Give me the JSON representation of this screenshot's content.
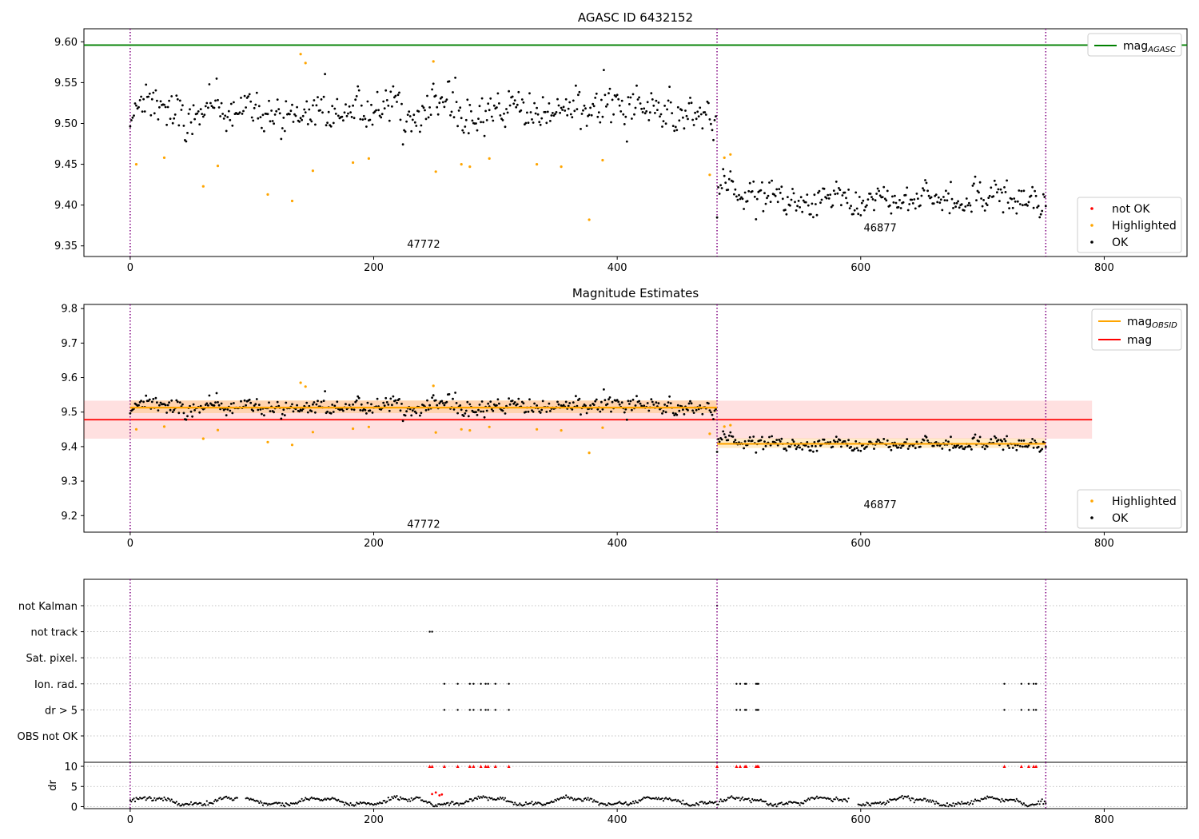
{
  "chart_data": [
    {
      "id": "p1",
      "type": "scatter",
      "title": "AGASC ID 6432152",
      "xlim": [
        -38,
        868
      ],
      "ylim": [
        9.337,
        9.616
      ],
      "xticks": [
        0,
        200,
        400,
        600,
        800
      ],
      "yticks": [
        9.35,
        9.4,
        9.45,
        9.5,
        9.55,
        9.6
      ],
      "vlines": [
        0,
        482,
        752
      ],
      "obsid_labels": [
        {
          "text": "47772",
          "x": 241,
          "y": 9.348
        },
        {
          "text": "46877",
          "x": 616,
          "y": 9.368
        }
      ],
      "hline": {
        "name": "mag",
        "sub": "AGASC",
        "y": 9.596,
        "color": "#008000"
      },
      "series_colors": {
        "OK": "#000000",
        "Highlighted": "#ffa500",
        "not OK": "#ff0000"
      },
      "segments": [
        {
          "x_start": 0,
          "x_end": 482,
          "mean": 9.515,
          "sd": 0.022
        },
        {
          "x_start": 482,
          "x_end": 752,
          "mean": 9.408,
          "sd": 0.017
        }
      ],
      "highlighted": [
        [
          5,
          9.45
        ],
        [
          28,
          9.458
        ],
        [
          60,
          9.423
        ],
        [
          72,
          9.448
        ],
        [
          113,
          9.413
        ],
        [
          133,
          9.405
        ],
        [
          140,
          9.585
        ],
        [
          144,
          9.574
        ],
        [
          150,
          9.442
        ],
        [
          183,
          9.452
        ],
        [
          196,
          9.457
        ],
        [
          249,
          9.576
        ],
        [
          251,
          9.441
        ],
        [
          272,
          9.45
        ],
        [
          279,
          9.447
        ],
        [
          295,
          9.457
        ],
        [
          334,
          9.45
        ],
        [
          354,
          9.447
        ],
        [
          377,
          9.382
        ],
        [
          388,
          9.455
        ],
        [
          476,
          9.437
        ],
        [
          488,
          9.458
        ],
        [
          493,
          9.462
        ]
      ],
      "legend_points": [
        "not OK",
        "Highlighted",
        "OK"
      ],
      "legend_lines": [
        {
          "label": "mag",
          "sub": "AGASC",
          "color": "#008000"
        }
      ]
    },
    {
      "id": "p2",
      "type": "scatter",
      "title": "Magnitude Estimates",
      "xlim": [
        -38,
        868
      ],
      "ylim": [
        9.152,
        9.812
      ],
      "xticks": [
        0,
        200,
        400,
        600,
        800
      ],
      "yticks": [
        9.2,
        9.3,
        9.4,
        9.5,
        9.6,
        9.7,
        9.8
      ],
      "vlines": [
        0,
        482,
        752
      ],
      "obsid_labels": [
        {
          "text": "47772",
          "x": 241,
          "y": 9.165
        },
        {
          "text": "46877",
          "x": 616,
          "y": 9.222
        }
      ],
      "mag": {
        "y": 9.478,
        "band": [
          9.423,
          9.533
        ],
        "x_start": -38,
        "x_end": 790,
        "color": "#ff0000"
      },
      "mag_obsid": [
        {
          "x_start": 0,
          "x_end": 482,
          "y": 9.513,
          "band": [
            9.497,
            9.534
          ]
        },
        {
          "x_start": 482,
          "x_end": 752,
          "y": 9.408,
          "band": [
            9.396,
            9.424
          ]
        }
      ],
      "series_colors": {
        "OK": "#000000",
        "Highlighted": "#ffa500"
      },
      "legend_points": [
        "Highlighted",
        "OK"
      ],
      "legend_lines": [
        {
          "label": "mag",
          "sub": "OBSID",
          "color": "#ffa500"
        },
        {
          "label": "mag",
          "sub": "",
          "color": "#ff0000"
        }
      ]
    },
    {
      "id": "p3",
      "type": "scatter",
      "xlim": [
        -38,
        868
      ],
      "xticks": [
        0,
        200,
        400,
        600,
        800
      ],
      "vlines": [
        0,
        482,
        752
      ],
      "flag_rows": [
        "not Kalman",
        "not track",
        "Sat. pixel.",
        "Ion. rad.",
        "dr > 5",
        "OBS not OK"
      ],
      "flags": {
        "not Kalman": [
          482
        ],
        "not track": [
          246,
          248
        ],
        "Sat. pixel.": [],
        "Ion. rad.": [
          258,
          269,
          279,
          282,
          288,
          292,
          294,
          300,
          311,
          498,
          501,
          505,
          506,
          514,
          515,
          516,
          718,
          732,
          738,
          742,
          744
        ],
        "dr > 5": [
          258,
          269,
          279,
          282,
          288,
          292,
          294,
          300,
          311,
          498,
          501,
          505,
          506,
          514,
          515,
          516,
          718,
          732,
          738,
          742,
          744
        ],
        "OBS not OK": []
      },
      "dr_ylabel": "dr",
      "dr_ylim": [
        -0.5,
        11
      ],
      "dr_yticks": [
        0,
        5,
        10
      ],
      "dr_clip": 10,
      "dr_red": [
        246,
        248,
        258,
        269,
        279,
        282,
        288,
        292,
        294,
        300,
        311,
        482,
        498,
        501,
        505,
        506,
        514,
        515,
        516,
        718,
        732,
        738,
        742,
        744
      ],
      "dr_red_mid": [
        [
          248,
          3.1
        ],
        [
          251,
          3.5
        ],
        [
          254,
          2.8
        ],
        [
          256,
          3.0
        ]
      ]
    }
  ]
}
